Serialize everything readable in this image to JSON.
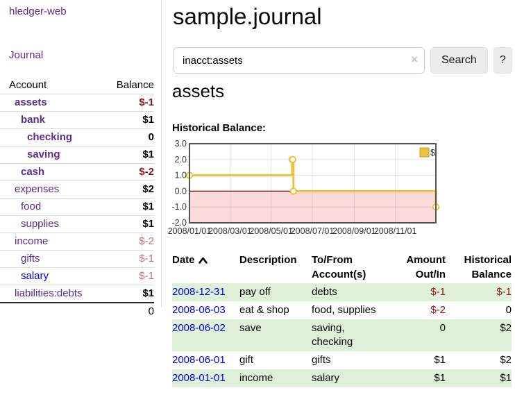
{
  "colors": {
    "link_purple": "#5b2d91",
    "link_blue": "#0000e6",
    "negative_strong": "#8e1515",
    "negative_soft": "#bf7076",
    "row_green": "#dff0d8",
    "chart_gold": "#edc240",
    "chart_negative_fill": "#fadada",
    "chart_zero_line": "#8b0000",
    "chart_border": "#545454"
  },
  "sidebar": {
    "app_title": "hledger-web",
    "journal_link": "Journal",
    "accounts": {
      "header_account": "Account",
      "header_balance": "Balance",
      "rows": [
        {
          "name": "assets",
          "balance": "$-1",
          "depth": 0,
          "bold": true,
          "balance_bold": true,
          "balance_class": "neg-strong",
          "link_class": "purple"
        },
        {
          "name": "bank",
          "balance": "$1",
          "depth": 1,
          "bold": true,
          "balance_bold": true,
          "balance_class": "",
          "link_class": "purple"
        },
        {
          "name": "checking",
          "balance": "0",
          "depth": 2,
          "bold": true,
          "balance_bold": true,
          "balance_class": "",
          "link_class": "purple"
        },
        {
          "name": "saving",
          "balance": "$1",
          "depth": 2,
          "bold": true,
          "balance_bold": true,
          "balance_class": "",
          "link_class": "purple"
        },
        {
          "name": "cash",
          "balance": "$-2",
          "depth": 1,
          "bold": true,
          "balance_bold": true,
          "balance_class": "neg-strong",
          "link_class": "purple"
        },
        {
          "name": "expenses",
          "balance": "$2",
          "depth": 0,
          "bold": false,
          "balance_bold": true,
          "balance_class": "",
          "link_class": "purple"
        },
        {
          "name": "food",
          "balance": "$1",
          "depth": 1,
          "bold": false,
          "balance_bold": true,
          "balance_class": "",
          "link_class": "purple"
        },
        {
          "name": "supplies",
          "balance": "$1",
          "depth": 1,
          "bold": false,
          "balance_bold": true,
          "balance_class": "",
          "link_class": "purple"
        },
        {
          "name": "income",
          "balance": "$-2",
          "depth": 0,
          "bold": false,
          "balance_bold": false,
          "balance_class": "neg-soft",
          "link_class": "purple"
        },
        {
          "name": "gifts",
          "balance": "$-1",
          "depth": 1,
          "bold": false,
          "balance_bold": false,
          "balance_class": "neg-soft",
          "link_class": "purple"
        },
        {
          "name": "salary",
          "balance": "$-1",
          "depth": 1,
          "bold": false,
          "balance_bold": false,
          "balance_class": "neg-soft",
          "link_class": "blue"
        },
        {
          "name": "liabilities:debts",
          "balance": "$1",
          "depth": 0,
          "bold": false,
          "balance_bold": true,
          "balance_class": "",
          "link_class": "purple"
        }
      ],
      "total": "0"
    }
  },
  "main": {
    "title": "sample.journal",
    "search": {
      "value": "inacct:assets",
      "clear_label": "×",
      "search_button": "Search",
      "help_button": "?"
    },
    "account_heading": "assets",
    "chart_title": "Historical Balance:"
  },
  "chart_data": {
    "type": "line",
    "step": true,
    "title": "Historical Balance:",
    "series": [
      {
        "name": "$",
        "color": "#edc240",
        "points": [
          {
            "date": "2008-01-01",
            "value": 1
          },
          {
            "date": "2008-06-01",
            "value": 2
          },
          {
            "date": "2008-06-02",
            "value": 2
          },
          {
            "date": "2008-06-03",
            "value": 0
          },
          {
            "date": "2008-12-31",
            "value": -1
          }
        ]
      }
    ],
    "xlim": [
      "2008-01-01",
      "2008-12-31"
    ],
    "ylim": [
      -2.0,
      3.0
    ],
    "yticks": [
      3.0,
      2.0,
      1.0,
      0.0,
      -1.0,
      -2.0
    ],
    "xticks": [
      {
        "label": "2008/01/01",
        "date": "2008-01-01"
      },
      {
        "label": "2008/03/01",
        "date": "2008-03-01"
      },
      {
        "label": "2008/05/01",
        "date": "2008-05-01"
      },
      {
        "label": "2008/07/01",
        "date": "2008-07-01"
      },
      {
        "label": "2008/09/01",
        "date": "2008-09-01"
      },
      {
        "label": "2008/11/01",
        "date": "2008-11-01"
      }
    ],
    "grid": true,
    "legend": {
      "label": "$",
      "position": "top-right"
    },
    "negative_fill": "#fadada",
    "zero_line": "#8b0000",
    "border_color": "#545454"
  },
  "register": {
    "headers": {
      "date": "Date",
      "description": "Description",
      "account": "To/From Account(s)",
      "amount": "Amount Out/In",
      "balance": "Historical Balance"
    },
    "rows": [
      {
        "date": "2008-12-31",
        "description": "pay off",
        "account": "debts",
        "amount": "$-1",
        "balance": "$-1",
        "amount_negative": true,
        "balance_negative": true
      },
      {
        "date": "2008-06-03",
        "description": "eat & shop",
        "account": "food, supplies",
        "amount": "$-2",
        "balance": "0",
        "amount_negative": true,
        "balance_negative": false
      },
      {
        "date": "2008-06-02",
        "description": "save",
        "account": "saving, checking",
        "amount": "0",
        "balance": "$2",
        "amount_negative": false,
        "balance_negative": false
      },
      {
        "date": "2008-06-01",
        "description": "gift",
        "account": "gifts",
        "amount": "$1",
        "balance": "$2",
        "amount_negative": false,
        "balance_negative": false
      },
      {
        "date": "2008-01-01",
        "description": "income",
        "account": "salary",
        "amount": "$1",
        "balance": "$1",
        "amount_negative": false,
        "balance_negative": false
      }
    ]
  }
}
